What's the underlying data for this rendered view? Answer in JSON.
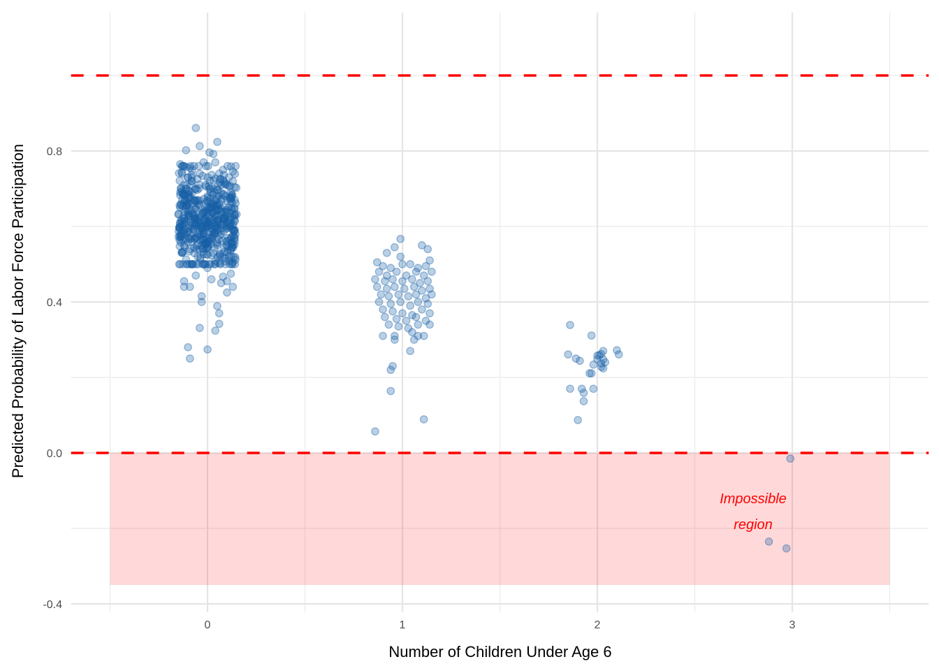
{
  "chart_data": {
    "type": "scatter",
    "title": "",
    "xlabel": "Number of Children Under Age 6",
    "ylabel": "Predicted Probability of Labor Force Participation",
    "xlim": [
      -0.7,
      3.7
    ],
    "ylim": [
      -0.42,
      1.12
    ],
    "x_ticks": [
      0,
      1,
      2,
      3
    ],
    "x_tick_labels": [
      "0",
      "1",
      "2",
      "3"
    ],
    "x_minor_gridlines": [
      -0.5,
      0.5,
      1.5,
      2.5,
      3.5
    ],
    "y_ticks": [
      -0.4,
      0.0,
      0.4,
      0.8
    ],
    "y_tick_labels": [
      "-0.4",
      "0.0",
      "0.4",
      "0.8"
    ],
    "y_minor_gridlines": [
      -0.2,
      0.2,
      0.6,
      1.0
    ],
    "grid": true,
    "legend": "none",
    "reference_lines": [
      {
        "name": "upper-bound",
        "y": 1.0,
        "style": "dashed",
        "color": "#ff0000"
      },
      {
        "name": "lower-bound",
        "y": 0.0,
        "style": "dashed",
        "color": "#ff0000"
      }
    ],
    "shaded_region": {
      "name": "impossible-region",
      "x": [
        -0.5,
        3.5
      ],
      "y": [
        -0.35,
        0.0
      ],
      "color": "#ff0000",
      "opacity": 0.15
    },
    "annotation": {
      "lines": [
        "Impossible",
        "region"
      ],
      "x": 2.7,
      "y": -0.17,
      "color": "#ff0000"
    },
    "point_color": "#1660a7",
    "point_alpha": 0.3,
    "series": [
      {
        "name": "kids0",
        "group": 0,
        "n_approx": 540,
        "mean": 0.62,
        "sd": 0.07,
        "jitter": 0.15,
        "outliers": [
          [
            -0.06,
            0.861
          ],
          [
            0.05,
            0.824
          ],
          [
            -0.04,
            0.813
          ],
          [
            -0.11,
            0.802
          ],
          [
            0.01,
            0.796
          ],
          [
            0.03,
            0.792
          ],
          [
            -0.14,
            0.765
          ],
          [
            0.12,
            0.759
          ],
          [
            -0.1,
            0.28
          ],
          [
            -0.09,
            0.25
          ],
          [
            0.0,
            0.274
          ],
          [
            0.04,
            0.324
          ],
          [
            -0.04,
            0.331
          ],
          [
            0.06,
            0.342
          ],
          [
            0.06,
            0.37
          ],
          [
            0.05,
            0.389
          ],
          [
            -0.03,
            0.4
          ],
          [
            -0.03,
            0.415
          ],
          [
            0.1,
            0.425
          ],
          [
            0.13,
            0.44
          ],
          [
            0.1,
            0.455
          ],
          [
            0.08,
            0.467
          ],
          [
            0.12,
            0.475
          ],
          [
            -0.09,
            0.44
          ],
          [
            -0.12,
            0.44
          ],
          [
            -0.12,
            0.455
          ],
          [
            0.02,
            0.46
          ],
          [
            0.07,
            0.45
          ],
          [
            -0.06,
            0.47
          ],
          [
            0.0,
            0.49
          ],
          [
            -0.08,
            0.5
          ],
          [
            0.13,
            0.505
          ],
          [
            0.11,
            0.52
          ],
          [
            -0.13,
            0.53
          ]
        ],
        "core_points": [
          [
            -0.13,
            0.74
          ],
          [
            -0.1,
            0.73
          ],
          [
            -0.07,
            0.76
          ],
          [
            -0.02,
            0.77
          ],
          [
            0.04,
            0.77
          ],
          [
            0.08,
            0.75
          ],
          [
            0.11,
            0.73
          ],
          [
            -0.12,
            0.71
          ],
          [
            -0.08,
            0.72
          ],
          [
            -0.04,
            0.74
          ],
          [
            0.0,
            0.73
          ],
          [
            0.06,
            0.74
          ],
          [
            0.1,
            0.71
          ],
          [
            0.13,
            0.72
          ],
          [
            -0.14,
            0.69
          ],
          [
            -0.11,
            0.7
          ],
          [
            -0.06,
            0.7
          ],
          [
            -0.01,
            0.71
          ],
          [
            0.03,
            0.7
          ],
          [
            0.07,
            0.71
          ],
          [
            0.12,
            0.69
          ],
          [
            -0.13,
            0.67
          ],
          [
            -0.09,
            0.68
          ],
          [
            -0.05,
            0.67
          ],
          [
            0.0,
            0.68
          ],
          [
            0.04,
            0.67
          ],
          [
            0.09,
            0.68
          ],
          [
            0.14,
            0.67
          ],
          [
            -0.14,
            0.65
          ],
          [
            -0.1,
            0.66
          ],
          [
            -0.06,
            0.65
          ],
          [
            -0.02,
            0.66
          ],
          [
            0.02,
            0.65
          ],
          [
            0.06,
            0.66
          ],
          [
            0.11,
            0.65
          ],
          [
            -0.12,
            0.63
          ],
          [
            -0.08,
            0.64
          ],
          [
            -0.03,
            0.63
          ],
          [
            0.01,
            0.64
          ],
          [
            0.05,
            0.63
          ],
          [
            0.1,
            0.64
          ],
          [
            0.14,
            0.63
          ],
          [
            -0.14,
            0.61
          ],
          [
            -0.1,
            0.62
          ],
          [
            -0.05,
            0.61
          ],
          [
            -0.01,
            0.62
          ],
          [
            0.03,
            0.61
          ],
          [
            0.08,
            0.62
          ],
          [
            0.12,
            0.61
          ],
          [
            -0.13,
            0.59
          ],
          [
            -0.08,
            0.6
          ],
          [
            -0.04,
            0.59
          ],
          [
            0.0,
            0.6
          ],
          [
            0.05,
            0.59
          ],
          [
            0.09,
            0.6
          ],
          [
            0.14,
            0.59
          ],
          [
            -0.14,
            0.57
          ],
          [
            -0.11,
            0.58
          ],
          [
            -0.06,
            0.57
          ],
          [
            -0.02,
            0.58
          ],
          [
            0.02,
            0.57
          ],
          [
            0.07,
            0.58
          ],
          [
            0.12,
            0.57
          ],
          [
            -0.12,
            0.55
          ],
          [
            -0.08,
            0.56
          ],
          [
            -0.03,
            0.55
          ],
          [
            0.01,
            0.56
          ],
          [
            0.05,
            0.55
          ],
          [
            0.1,
            0.56
          ],
          [
            0.13,
            0.55
          ],
          [
            -0.13,
            0.53
          ],
          [
            -0.09,
            0.54
          ],
          [
            -0.05,
            0.52
          ],
          [
            0.03,
            0.53
          ],
          [
            0.08,
            0.52
          ],
          [
            0.12,
            0.54
          ]
        ]
      },
      {
        "name": "kids1",
        "group": 1,
        "points": [
          [
            0.99,
            0.567
          ],
          [
            1.1,
            0.55
          ],
          [
            1.13,
            0.54
          ],
          [
            0.96,
            0.545
          ],
          [
            0.92,
            0.53
          ],
          [
            0.99,
            0.52
          ],
          [
            1.14,
            0.51
          ],
          [
            0.87,
            0.505
          ],
          [
            0.9,
            0.495
          ],
          [
            0.94,
            0.49
          ],
          [
            1.0,
            0.5
          ],
          [
            1.04,
            0.5
          ],
          [
            1.08,
            0.49
          ],
          [
            1.12,
            0.495
          ],
          [
            0.88,
            0.48
          ],
          [
            0.92,
            0.47
          ],
          [
            0.97,
            0.48
          ],
          [
            1.02,
            0.47
          ],
          [
            1.07,
            0.48
          ],
          [
            1.11,
            0.47
          ],
          [
            1.15,
            0.48
          ],
          [
            0.86,
            0.46
          ],
          [
            0.91,
            0.455
          ],
          [
            0.95,
            0.46
          ],
          [
            1.0,
            0.455
          ],
          [
            1.05,
            0.46
          ],
          [
            1.09,
            0.45
          ],
          [
            1.13,
            0.455
          ],
          [
            0.87,
            0.44
          ],
          [
            0.92,
            0.435
          ],
          [
            0.96,
            0.44
          ],
          [
            1.01,
            0.435
          ],
          [
            1.06,
            0.44
          ],
          [
            1.1,
            0.43
          ],
          [
            1.14,
            0.435
          ],
          [
            0.89,
            0.42
          ],
          [
            0.93,
            0.415
          ],
          [
            0.98,
            0.42
          ],
          [
            1.03,
            0.415
          ],
          [
            1.07,
            0.42
          ],
          [
            1.12,
            0.41
          ],
          [
            1.15,
            0.42
          ],
          [
            0.88,
            0.4
          ],
          [
            0.94,
            0.395
          ],
          [
            0.99,
            0.4
          ],
          [
            1.04,
            0.39
          ],
          [
            1.08,
            0.4
          ],
          [
            1.13,
            0.395
          ],
          [
            0.9,
            0.38
          ],
          [
            0.95,
            0.375
          ],
          [
            1.0,
            0.37
          ],
          [
            1.05,
            0.365
          ],
          [
            1.1,
            0.38
          ],
          [
            1.14,
            0.37
          ],
          [
            0.91,
            0.36
          ],
          [
            0.97,
            0.355
          ],
          [
            1.02,
            0.35
          ],
          [
            1.07,
            0.36
          ],
          [
            1.12,
            0.35
          ],
          [
            1.14,
            0.34
          ],
          [
            0.93,
            0.34
          ],
          [
            0.98,
            0.335
          ],
          [
            1.03,
            0.33
          ],
          [
            1.08,
            0.34
          ],
          [
            0.9,
            0.31
          ],
          [
            0.96,
            0.31
          ],
          [
            0.96,
            0.3
          ],
          [
            1.05,
            0.32
          ],
          [
            1.08,
            0.31
          ],
          [
            1.11,
            0.31
          ],
          [
            1.06,
            0.3
          ],
          [
            1.04,
            0.27
          ],
          [
            0.95,
            0.23
          ],
          [
            0.94,
            0.22
          ],
          [
            0.94,
            0.164
          ],
          [
            1.11,
            0.089
          ],
          [
            0.86,
            0.057
          ]
        ]
      },
      {
        "name": "kids2",
        "group": 2,
        "points": [
          [
            1.86,
            0.339
          ],
          [
            1.97,
            0.311
          ],
          [
            1.85,
            0.261
          ],
          [
            1.89,
            0.25
          ],
          [
            1.91,
            0.244
          ],
          [
            1.98,
            0.234
          ],
          [
            2.0,
            0.258
          ],
          [
            2.02,
            0.262
          ],
          [
            2.0,
            0.248
          ],
          [
            2.03,
            0.248
          ],
          [
            2.04,
            0.24
          ],
          [
            2.02,
            0.228
          ],
          [
            2.03,
            0.224
          ],
          [
            1.96,
            0.211
          ],
          [
            1.97,
            0.211
          ],
          [
            1.86,
            0.17
          ],
          [
            1.92,
            0.17
          ],
          [
            1.93,
            0.159
          ],
          [
            1.98,
            0.17
          ],
          [
            1.93,
            0.137
          ],
          [
            1.9,
            0.087
          ],
          [
            2.1,
            0.272
          ],
          [
            2.11,
            0.261
          ],
          [
            2.01,
            0.259
          ],
          [
            2.03,
            0.27
          ],
          [
            2.02,
            0.237
          ]
        ]
      },
      {
        "name": "kids3",
        "group": 3,
        "points": [
          [
            2.99,
            -0.015
          ],
          [
            2.88,
            -0.235
          ],
          [
            2.97,
            -0.253
          ]
        ]
      }
    ]
  }
}
